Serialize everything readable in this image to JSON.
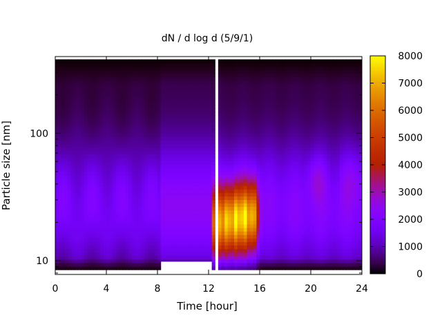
{
  "chart_data": {
    "type": "heatmap",
    "title": "dN / d log d (5/9/1)",
    "xlabel": "Time [hour]",
    "ylabel": "Particle size [nm]",
    "x_ticks": [
      0,
      4,
      8,
      12,
      16,
      20,
      24
    ],
    "x_range": [
      0,
      24
    ],
    "y_scale": "log",
    "y_range": [
      7.8,
      400
    ],
    "y_tick_labels": [
      {
        "value": 10,
        "label": "10"
      },
      {
        "value": 100,
        "label": "100"
      }
    ],
    "colorbar": {
      "palette": "black-purple-red-orange-yellow",
      "range": [
        0,
        8000
      ],
      "ticks": [
        0,
        1000,
        2000,
        3000,
        4000,
        5000,
        6000,
        7000,
        8000
      ],
      "tick_labels": [
        "0",
        "1000",
        "2000",
        "3000",
        "4000",
        "5000",
        "6000",
        "7000",
        "8000"
      ]
    },
    "data_time_range_hours": [
      0,
      24
    ],
    "data_size_range_nm": [
      8.5,
      380
    ],
    "gaps_hours": [
      [
        12.5,
        12.8
      ]
    ],
    "nucleation_event": {
      "time_range_hours": [
        12.3,
        16.2
      ],
      "size_range_nm": [
        12,
        45
      ],
      "peak_value": 6000
    },
    "grid": false,
    "legend": "colorbar-right"
  }
}
